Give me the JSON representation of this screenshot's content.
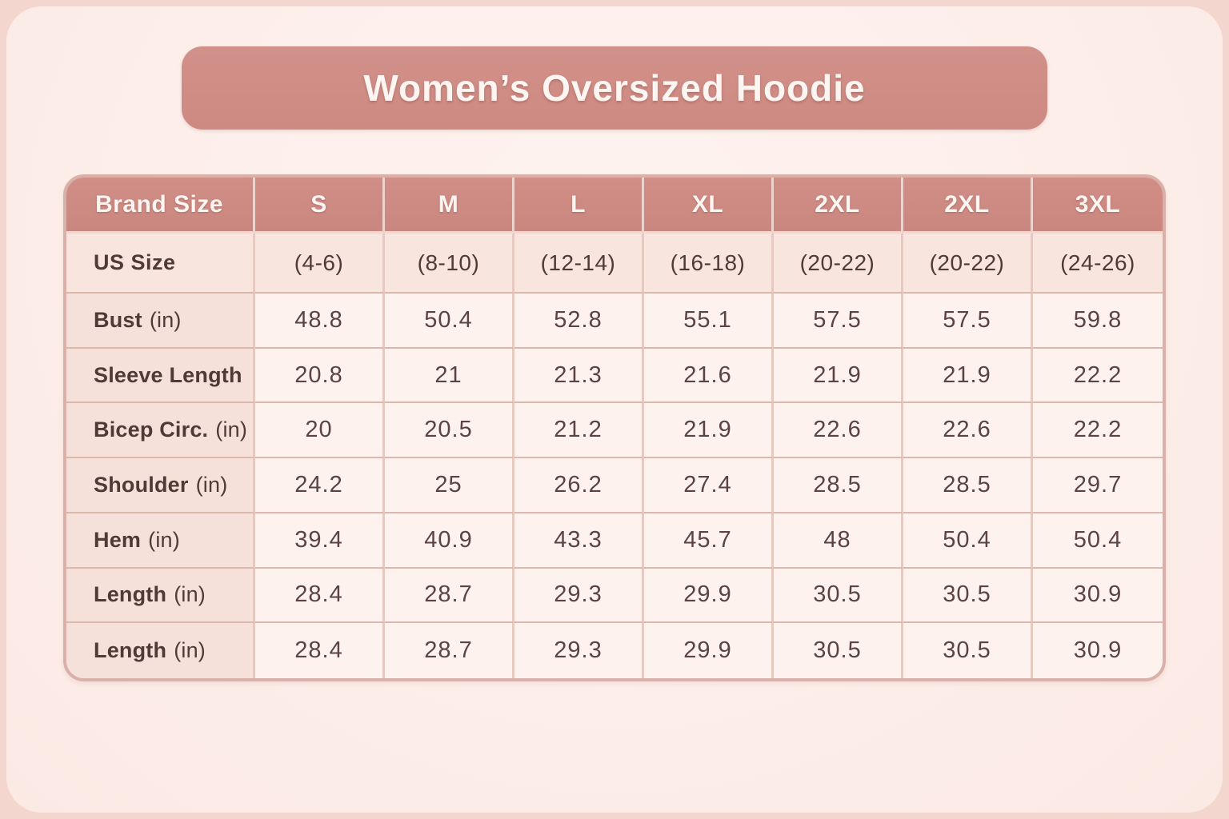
{
  "title": "Women’s Oversized Hoodie",
  "colors": {
    "outer_background": "#f3d6cd",
    "card_background": "#fdefeb",
    "banner_background": "#cf8c84",
    "header_background": "#cd8b83",
    "label_column_background": "#f6e0da",
    "us_row_background": "#f7e5de",
    "data_cell_background": "#fdf2ee",
    "table_border": "#d9b1a8",
    "header_text": "#fdf5f2",
    "body_text": "#5b433f",
    "label_text": "#4f3a37"
  },
  "table": {
    "columns": [
      "Brand Size",
      "S",
      "M",
      "L",
      "XL",
      "2XL",
      "2XL",
      "3XL"
    ],
    "us_size_row": {
      "label": "US Size",
      "values": [
        "(4-6)",
        "(8-10)",
        "(12-14)",
        "(16-18)",
        "(20-22)",
        "(20-22)",
        "(24-26)"
      ]
    },
    "rows": [
      {
        "label": "Bust",
        "unit": "(in)",
        "values": [
          "48.8",
          "50.4",
          "52.8",
          "55.1",
          "57.5",
          "57.5",
          "59.8"
        ]
      },
      {
        "label": "Sleeve Length",
        "unit": "",
        "values": [
          "20.8",
          "21",
          "21.3",
          "21.6",
          "21.9",
          "21.9",
          "22.2"
        ]
      },
      {
        "label": "Bicep Circ.",
        "unit": "(in)",
        "values": [
          "20",
          "20.5",
          "21.2",
          "21.9",
          "22.6",
          "22.6",
          "22.2"
        ]
      },
      {
        "label": "Shoulder",
        "unit": "(in)",
        "values": [
          "24.2",
          "25",
          "26.2",
          "27.4",
          "28.5",
          "28.5",
          "29.7"
        ]
      },
      {
        "label": "Hem",
        "unit": "(in)",
        "values": [
          "39.4",
          "40.9",
          "43.3",
          "45.7",
          "48",
          "50.4",
          "50.4"
        ]
      },
      {
        "label": "Length",
        "unit": "(in)",
        "values": [
          "28.4",
          "28.7",
          "29.3",
          "29.9",
          "30.5",
          "30.5",
          "30.9"
        ]
      },
      {
        "label": "Length",
        "unit": "(in)",
        "values": [
          "28.4",
          "28.7",
          "29.3",
          "29.9",
          "30.5",
          "30.5",
          "30.9"
        ]
      }
    ]
  },
  "chart_data": {
    "type": "table",
    "title": "Women’s Oversized Hoodie",
    "columns": [
      "Brand Size",
      "S",
      "M",
      "L",
      "XL",
      "2XL",
      "2XL",
      "3XL"
    ],
    "rows": [
      [
        "US Size",
        "(4-6)",
        "(8-10)",
        "(12-14)",
        "(16-18)",
        "(20-22)",
        "(20-22)",
        "(24-26)"
      ],
      [
        "Bust (in)",
        48.8,
        50.4,
        52.8,
        55.1,
        57.5,
        57.5,
        59.8
      ],
      [
        "Sleeve Length",
        20.8,
        21,
        21.3,
        21.6,
        21.9,
        21.9,
        22.2
      ],
      [
        "Bicep Circ. (in)",
        20,
        20.5,
        21.2,
        21.9,
        22.6,
        22.6,
        22.2
      ],
      [
        "Shoulder (in)",
        24.2,
        25,
        26.2,
        27.4,
        28.5,
        28.5,
        29.7
      ],
      [
        "Hem (in)",
        39.4,
        40.9,
        43.3,
        45.7,
        48,
        50.4,
        50.4
      ],
      [
        "Length (in)",
        28.4,
        28.7,
        29.3,
        29.9,
        30.5,
        30.5,
        30.9
      ],
      [
        "Length (in)",
        28.4,
        28.7,
        29.3,
        29.9,
        30.5,
        30.5,
        30.9
      ]
    ]
  }
}
